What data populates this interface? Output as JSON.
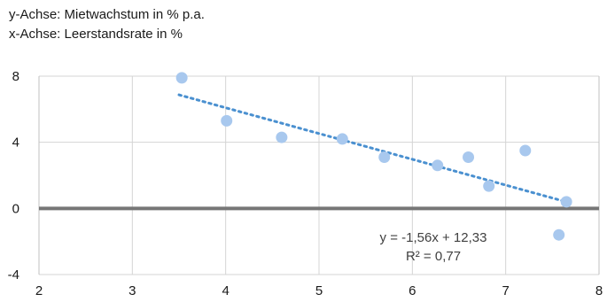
{
  "chart_data": {
    "type": "scatter",
    "ylabel": "y-Achse: Mietwachstum in % p.a.",
    "xlabel": "x-Achse: Leerstandsrate in %",
    "xlim": [
      2,
      8
    ],
    "ylim": [
      -4,
      8
    ],
    "x_ticks": [
      2,
      3,
      4,
      5,
      6,
      7,
      8
    ],
    "y_ticks": [
      -4,
      0,
      4,
      8
    ],
    "grid": true,
    "points": [
      {
        "x": 3.53,
        "y": 7.9
      },
      {
        "x": 4.01,
        "y": 5.3
      },
      {
        "x": 4.6,
        "y": 4.3
      },
      {
        "x": 5.25,
        "y": 4.2
      },
      {
        "x": 5.7,
        "y": 3.1
      },
      {
        "x": 6.27,
        "y": 2.6
      },
      {
        "x": 6.6,
        "y": 3.1
      },
      {
        "x": 6.82,
        "y": 1.35
      },
      {
        "x": 7.21,
        "y": 3.5
      },
      {
        "x": 7.57,
        "y": -1.6
      },
      {
        "x": 7.65,
        "y": 0.4
      }
    ],
    "trendline": {
      "slope": -1.56,
      "intercept": 12.33,
      "x_range": [
        3.5,
        7.65
      ],
      "equation": "y = -1,56x + 12,33",
      "r_squared": "R² = 0,77"
    },
    "colors": {
      "points": "#a8c8ee",
      "trendline": "#4a90d0",
      "zero_line": "#767676",
      "grid": "#d4d4d4",
      "border": "#c0c0c0"
    }
  }
}
